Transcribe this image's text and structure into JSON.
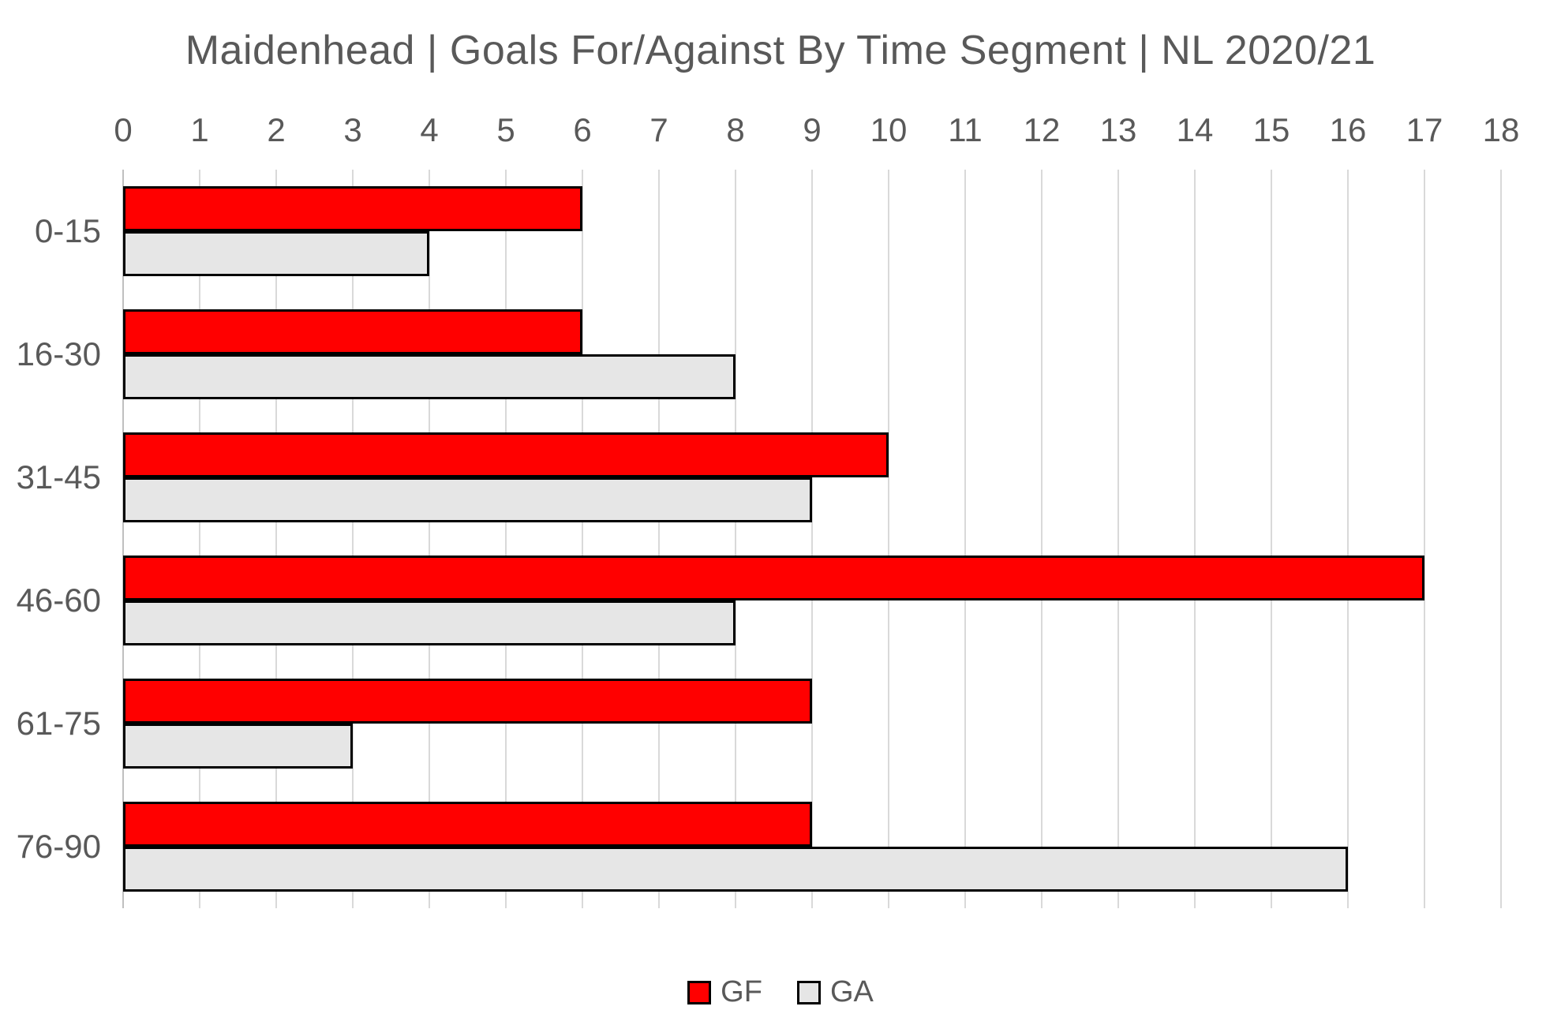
{
  "chart_data": {
    "type": "bar",
    "orientation": "horizontal",
    "title": "Maidenhead | Goals For/Against By Time Segment | NL 2020/21",
    "categories": [
      "0-15",
      "16-30",
      "31-45",
      "46-60",
      "61-75",
      "76-90"
    ],
    "series": [
      {
        "name": "GF",
        "color": "#FF0000",
        "values": [
          6,
          6,
          10,
          17,
          9,
          9
        ]
      },
      {
        "name": "GA",
        "color": "#E6E6E6",
        "values": [
          4,
          8,
          9,
          8,
          3,
          16
        ]
      }
    ],
    "x_axis": {
      "min": 0,
      "max": 18,
      "tick_interval": 1,
      "position": "top",
      "ticks": [
        0,
        1,
        2,
        3,
        4,
        5,
        6,
        7,
        8,
        9,
        10,
        11,
        12,
        13,
        14,
        15,
        16,
        17,
        18
      ]
    },
    "grid": true,
    "legend": {
      "position": "bottom",
      "entries": [
        "GF",
        "GA"
      ]
    },
    "colors": {
      "bar_border": "#000000",
      "gridline": "#D9D9D9",
      "axis_line": "#BFBFBF",
      "text": "#595959",
      "background": "#FFFFFF"
    }
  }
}
